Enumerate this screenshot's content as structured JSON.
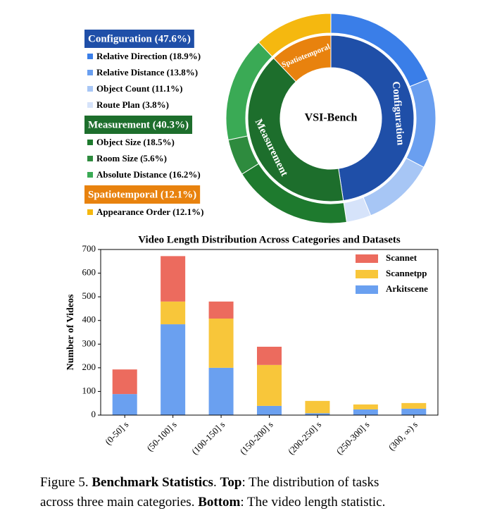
{
  "chart_data": [
    {
      "type": "donut",
      "center_label": "VSI-Bench",
      "groups": [
        {
          "name": "Configuration",
          "label": "Configuration (47.6%)",
          "value": 47.6,
          "color": "#1f4fa8",
          "items": [
            {
              "label": "Relative Direction (18.9%)",
              "value": 18.9,
              "color": "#3a7ee8"
            },
            {
              "label": "Relative Distance (13.8%)",
              "value": 13.8,
              "color": "#6a9ff0"
            },
            {
              "label": "Object Count (11.1%)",
              "value": 11.1,
              "color": "#a7c6f5"
            },
            {
              "label": "Route Plan (3.8%)",
              "value": 3.8,
              "color": "#d6e3fa"
            }
          ]
        },
        {
          "name": "Measurement",
          "label": "Measurement (40.3%)",
          "value": 40.3,
          "color": "#1d6e2c",
          "items": [
            {
              "label": "Object Size (18.5%)",
              "value": 18.5,
              "color": "#1e7a2e"
            },
            {
              "label": "Room Size (5.6%)",
              "value": 5.6,
              "color": "#2e8b3e"
            },
            {
              "label": "Absolute Distance (16.2%)",
              "value": 16.2,
              "color": "#3aaa55"
            }
          ]
        },
        {
          "name": "Spatiotemporal",
          "label": "Spatiotemporal (12.1%)",
          "value": 12.1,
          "color": "#e8820e",
          "items": [
            {
              "label": "Appearance Order (12.1%)",
              "value": 12.1,
              "color": "#f5b80f"
            }
          ]
        }
      ]
    },
    {
      "type": "stacked-bar",
      "title": "Video Length Distribution Across Categories and Datasets",
      "y_label": "Number of Videos",
      "categories": [
        "(0-50] s",
        "(50-100] s",
        "(100-150] s",
        "(150-200] s",
        "(200-250] s",
        "(250-300] s",
        "(300, ∞) s"
      ],
      "series": [
        {
          "name": "Scannet",
          "color": "#ec6b5e",
          "values": [
            104,
            192,
            72,
            77,
            0,
            0,
            0
          ]
        },
        {
          "name": "Scannetpp",
          "color": "#f8c63a",
          "values": [
            0,
            96,
            208,
            173,
            52,
            21,
            24
          ]
        },
        {
          "name": "Arkitscene",
          "color": "#6aa0f0",
          "values": [
            89,
            384,
            200,
            39,
            8,
            24,
            27
          ]
        }
      ],
      "ylim": [
        0,
        700
      ],
      "yticks": [
        0,
        100,
        200,
        300,
        400,
        500,
        600,
        700
      ],
      "grid": false
    }
  ],
  "caption": {
    "lines": [
      [
        {
          "text": "Figure 5. ",
          "bold": false
        },
        {
          "text": "Benchmark Statistics",
          "bold": true
        },
        {
          "text": ". ",
          "bold": false
        },
        {
          "text": "Top",
          "bold": true
        },
        {
          "text": ": The distribution of tasks",
          "bold": false
        }
      ],
      [
        {
          "text": "across three main categories. ",
          "bold": false
        },
        {
          "text": "Bottom",
          "bold": true
        },
        {
          "text": ": The video length statistic.",
          "bold": false
        }
      ]
    ]
  }
}
